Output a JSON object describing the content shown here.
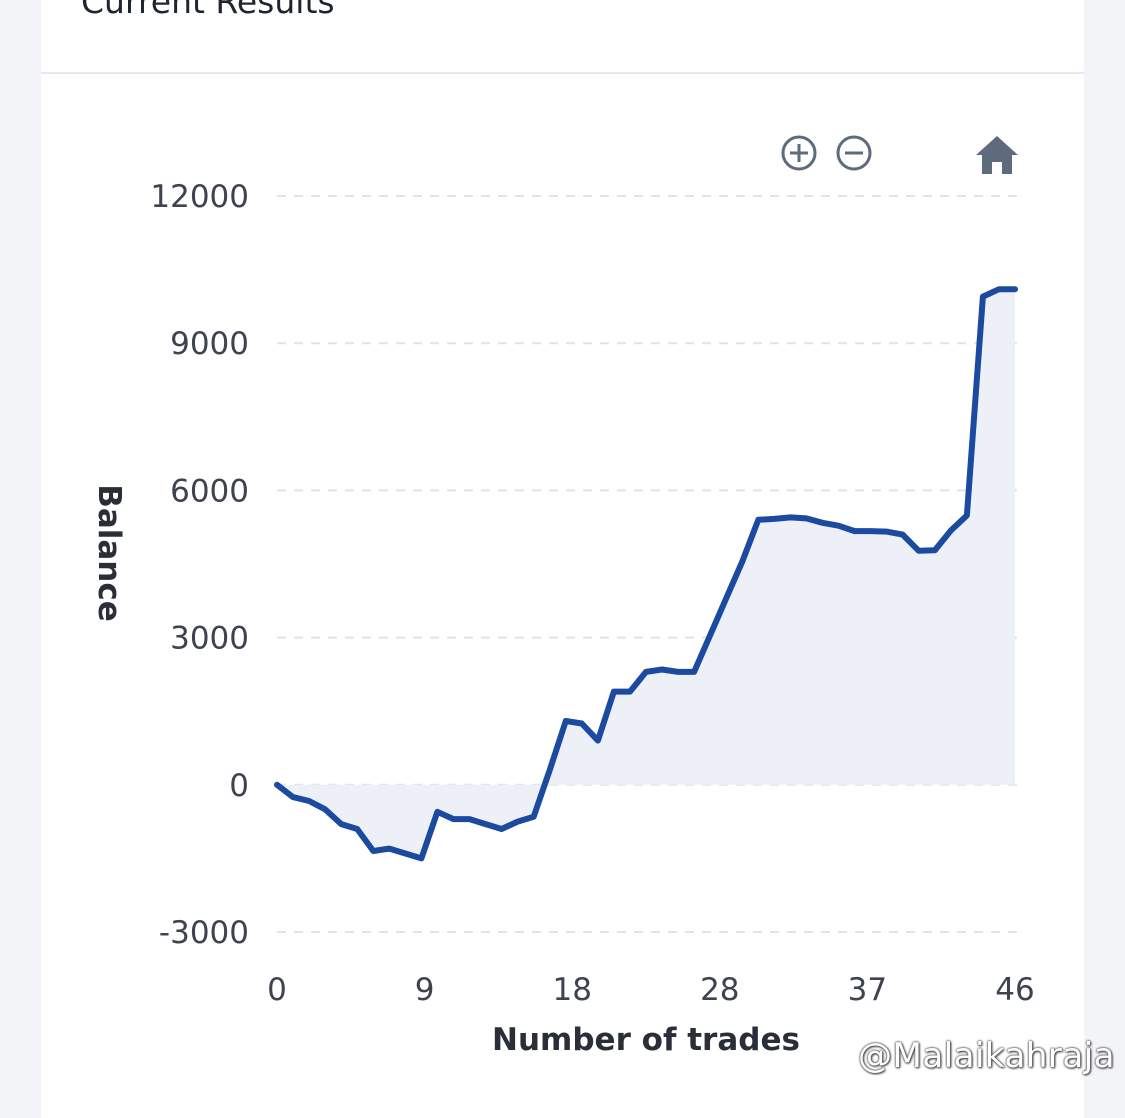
{
  "card": {
    "title": "Current Results"
  },
  "toolbar": {
    "zoom_in": "zoom-in-icon",
    "zoom_out": "zoom-out-icon",
    "reset": "home-icon"
  },
  "watermark": "@Malaikahraja",
  "colors": {
    "line": "#1b4aa0",
    "area": "#eef0f7",
    "grid": "#e1e3ea",
    "icon": "#5d6b7d"
  },
  "chart_data": {
    "type": "area",
    "xlabel": "Number of trades",
    "ylabel": "Balance",
    "xlim": [
      0,
      46
    ],
    "ylim": [
      -3000,
      12000
    ],
    "x_ticks": [
      "0",
      "9",
      "18",
      "28",
      "37",
      "46"
    ],
    "y_ticks": [
      "12000",
      "9000",
      "6000",
      "3000",
      "0",
      "-3000"
    ],
    "grid": true,
    "series": [
      {
        "x": [
          0,
          1,
          2,
          3,
          4,
          5,
          6,
          7,
          8,
          9,
          10,
          11,
          12,
          13,
          14,
          15,
          16,
          17,
          18,
          19,
          20,
          21,
          22,
          23,
          24,
          25,
          26,
          27,
          28,
          29,
          30,
          31,
          32,
          33,
          34,
          35,
          36,
          37,
          38,
          39,
          40,
          41,
          42,
          43,
          44,
          45,
          46
        ],
        "y": [
          0,
          -250,
          -330,
          -500,
          -800,
          -900,
          -1350,
          -1300,
          -1400,
          -1500,
          -550,
          -700,
          -700,
          -800,
          -900,
          -750,
          -650,
          300,
          1300,
          1250,
          900,
          1900,
          1900,
          2300,
          2350,
          2300,
          2300,
          3050,
          3800,
          4550,
          5400,
          5420,
          5450,
          5430,
          5340,
          5280,
          5170,
          5170,
          5160,
          5100,
          4770,
          4780,
          5180,
          5490,
          9950,
          10100,
          10100
        ]
      }
    ]
  }
}
